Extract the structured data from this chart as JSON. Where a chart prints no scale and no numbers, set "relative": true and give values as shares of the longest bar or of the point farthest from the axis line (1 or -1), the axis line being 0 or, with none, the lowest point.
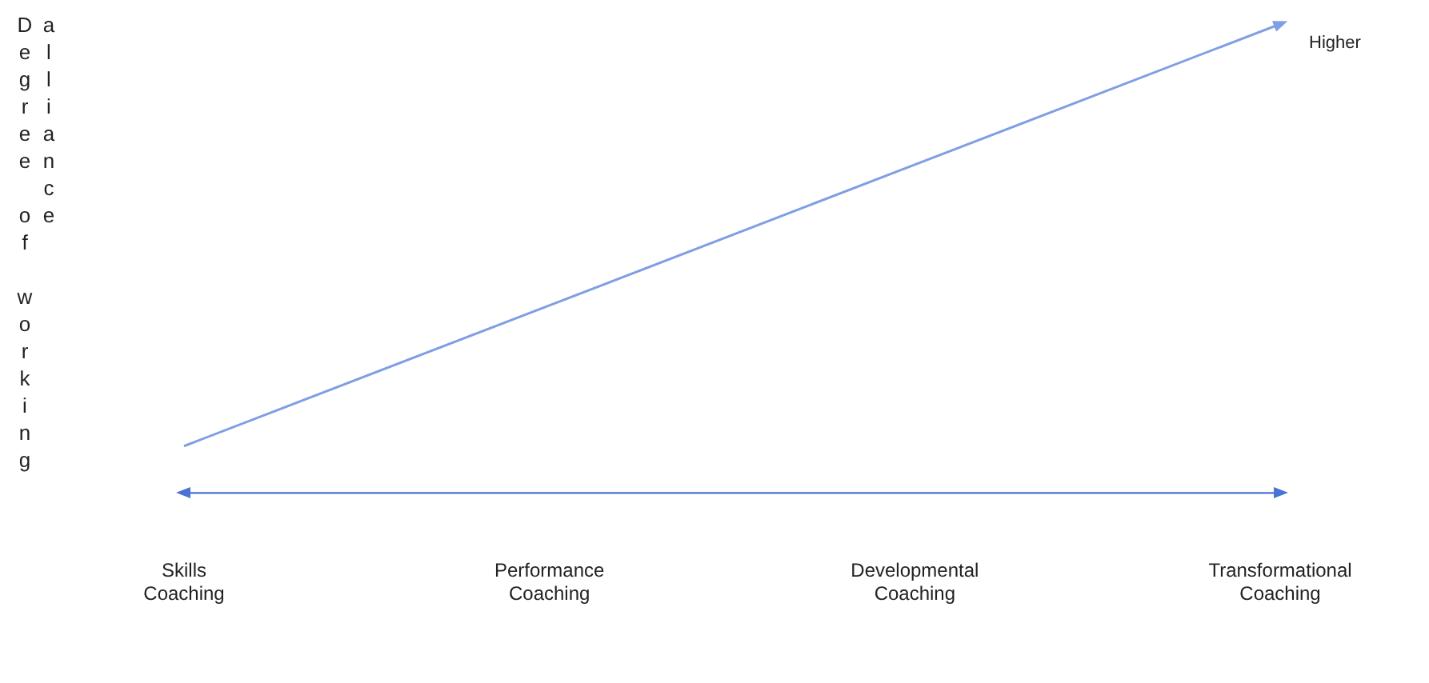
{
  "chart_data": {
    "type": "line",
    "relative": true,
    "ylabel": "Degree of working alliance",
    "categories": [
      "Skills Coaching",
      "Performance Coaching",
      "Developmental Coaching",
      "Transformational Coaching"
    ],
    "series": [
      {
        "color": "#7f9ee3",
        "values": [
          0.1,
          0.4,
          0.7,
          1
        ]
      }
    ],
    "annotations": [
      {
        "text": "Higher",
        "x": "Transformational Coaching",
        "y": 1
      }
    ],
    "grid": false,
    "legend": false,
    "marker": "none",
    "line_style": "solid"
  }
}
